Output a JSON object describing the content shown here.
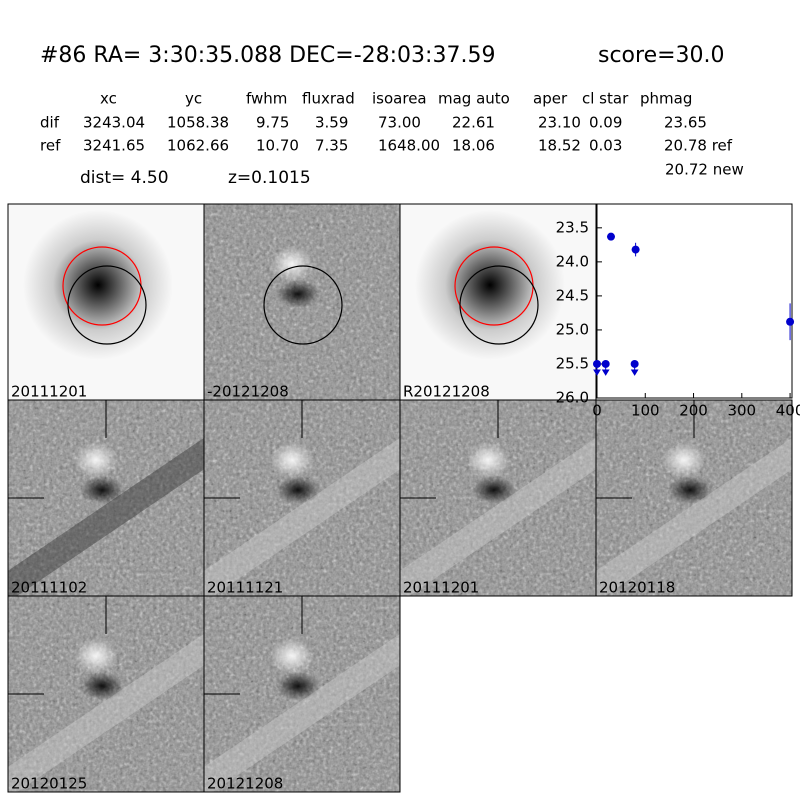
{
  "header": {
    "title": "#86   RA= 3:30:35.088 DEC=-28:03:37.59",
    "score": "score=30.0"
  },
  "table": {
    "columns": [
      "xc",
      "yc",
      "fwhm",
      "fluxrad",
      "isoarea",
      "mag auto",
      "aper",
      "cl star",
      "phmag"
    ],
    "rows": [
      [
        "dif",
        "3243.04",
        "1058.38",
        "9.75",
        "3.59",
        "73.00",
        "22.61",
        "23.10",
        "0.09",
        "23.65"
      ],
      [
        "ref",
        "3241.65",
        "1062.66",
        "10.70",
        "7.35",
        "1648.00",
        "18.06",
        "18.52",
        "0.03",
        "20.78 ref"
      ]
    ],
    "extra": "20.72 new",
    "dist": "dist=  4.50",
    "z": "z=0.1015"
  },
  "stamps": [
    "20111201",
    "-20121208",
    "R20121208",
    "20111102",
    "20111121",
    "20111201",
    "20120118",
    "20120125",
    "20121208"
  ],
  "chart_data": {
    "type": "scatter",
    "color": "#0000cc",
    "x": [
      29,
      80,
      400
    ],
    "values": [
      23.63,
      23.82,
      24.88
    ],
    "errors": [
      0.04,
      0.1,
      0.27
    ],
    "limit_x": [
      0,
      18,
      78
    ],
    "limit_values": [
      25.5,
      25.5,
      25.5
    ],
    "xlim": [
      0,
      404
    ],
    "ylim": [
      26.0,
      23.15
    ],
    "xticks": [
      0,
      100,
      200,
      300,
      400
    ],
    "yticks": [
      23.5,
      {
        "value": 24.0,
        "label": "24.0"
      },
      24.5,
      {
        "value": 25.0,
        "label": "25.0"
      },
      25.5,
      {
        "value": 26.0,
        "label": "26.0"
      }
    ]
  }
}
